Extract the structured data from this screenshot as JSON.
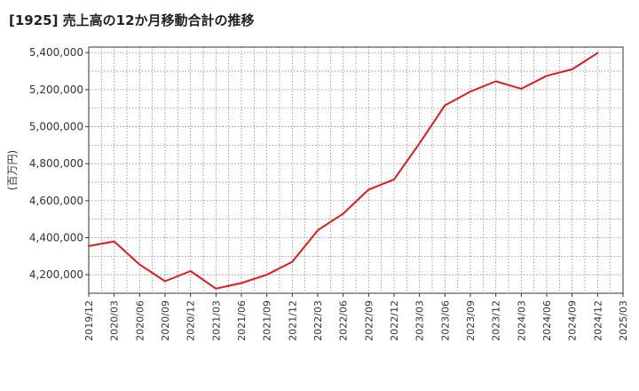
{
  "chart_data": {
    "type": "line",
    "title": "[1925]  売上高の12か月移動合計の推移",
    "ylabel": "(百万円)",
    "xlabel": "",
    "ylim": [
      4100000,
      5430000
    ],
    "yticks": [
      4200000,
      4400000,
      4600000,
      4800000,
      5000000,
      5200000,
      5400000
    ],
    "ytick_labels": [
      "4,200,000",
      "4,400,000",
      "4,600,000",
      "4,800,000",
      "5,000,000",
      "5,200,000",
      "5,400,000"
    ],
    "xtick_labels": [
      "2019/12",
      "2020/03",
      "2020/06",
      "2020/09",
      "2020/12",
      "2021/03",
      "2021/06",
      "2021/09",
      "2021/12",
      "2022/03",
      "2022/06",
      "2022/09",
      "2022/12",
      "2023/03",
      "2023/06",
      "2023/09",
      "2023/12",
      "2024/03",
      "2024/06",
      "2024/09",
      "2024/12",
      "2025/03"
    ],
    "grid": true,
    "line_color": "#e31a1c",
    "series": [
      {
        "name": "売上高(12か月移動合計)",
        "x": [
          "2019/12",
          "2020/03",
          "2020/06",
          "2020/09",
          "2020/12",
          "2021/03",
          "2021/06",
          "2021/09",
          "2021/12",
          "2022/03",
          "2022/06",
          "2022/09",
          "2022/12",
          "2023/03",
          "2023/06",
          "2023/09",
          "2023/12",
          "2024/03",
          "2024/06",
          "2024/09",
          "2024/12"
        ],
        "values": [
          4355000,
          4380000,
          4255000,
          4165000,
          4220000,
          4125000,
          4155000,
          4200000,
          4270000,
          4440000,
          4530000,
          4660000,
          4715000,
          4910000,
          5115000,
          5190000,
          5245000,
          5205000,
          5275000,
          5310000,
          5398000
        ]
      }
    ]
  }
}
